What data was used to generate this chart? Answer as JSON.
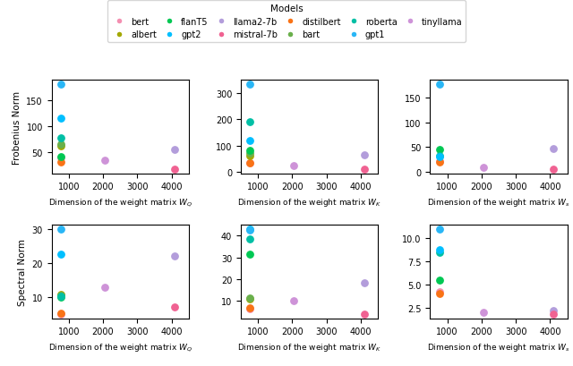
{
  "title": "Models",
  "colors": {
    "bert": "#f48fb1",
    "distilbert": "#f97316",
    "albert": "#a3a800",
    "bart": "#6ab04c",
    "flanT5": "#00c853",
    "roberta": "#00bfa5",
    "gpt2": "#00bfff",
    "gpt1": "#29b6f6",
    "llama2-7b": "#b39ddb",
    "tinyllama": "#ce93d8",
    "mistral-7b": "#f06292"
  },
  "xlabels": [
    "Dimension of the weight matrix $W_Q$",
    "Dimension of the weight matrix $W_K$",
    "Dimension of the weight matrix $W_s$"
  ],
  "ylabels_row0": "Frobenius Norm",
  "ylabels_row1": "Spectral Norm",
  "legend_order": [
    [
      "bert",
      "#f48fb1"
    ],
    [
      "albert",
      "#a3a800"
    ],
    [
      "flanT5",
      "#00c853"
    ],
    [
      "gpt2",
      "#00bfff"
    ],
    [
      "llama2-7b",
      "#b39ddb"
    ],
    [
      "mistral-7b",
      "#f06292"
    ],
    [
      "distilbert",
      "#f97316"
    ],
    [
      "bart",
      "#6ab04c"
    ],
    [
      "roberta",
      "#00bfa5"
    ],
    [
      "gpt1",
      "#29b6f6"
    ],
    [
      "tinyllama",
      "#ce93d8"
    ]
  ],
  "data": {
    "frobenius": {
      "WQ": {
        "bert": [
          768,
          40
        ],
        "distilbert": [
          768,
          32
        ],
        "albert": [
          768,
          62
        ],
        "bart": [
          768,
          65
        ],
        "flanT5": [
          768,
          42
        ],
        "roberta": [
          768,
          78
        ],
        "gpt2": [
          768,
          115
        ],
        "gpt1": [
          768,
          180
        ],
        "llama2-7b": [
          4096,
          56
        ],
        "tinyllama": [
          2048,
          35
        ],
        "mistral-7b": [
          4096,
          18
        ]
      },
      "WK": {
        "bert": [
          768,
          35
        ],
        "distilbert": [
          768,
          33
        ],
        "albert": [
          768,
          62
        ],
        "bart": [
          768,
          70
        ],
        "flanT5": [
          768,
          80
        ],
        "roberta": [
          768,
          190
        ],
        "gpt2": [
          768,
          120
        ],
        "gpt1": [
          768,
          335
        ],
        "llama2-7b": [
          4096,
          65
        ],
        "tinyllama": [
          2048,
          25
        ],
        "mistral-7b": [
          4096,
          10
        ]
      },
      "WS": {
        "bert": [
          768,
          22
        ],
        "distilbert": [
          768,
          20
        ],
        "flanT5": [
          768,
          45
        ],
        "roberta": [
          768,
          32
        ],
        "gpt2": [
          768,
          30
        ],
        "gpt1": [
          768,
          178
        ],
        "llama2-7b": [
          4096,
          46
        ],
        "tinyllama": [
          2048,
          9
        ],
        "mistral-7b": [
          4096,
          5
        ]
      }
    },
    "spectral": {
      "WQ": {
        "bert": [
          768,
          5.0
        ],
        "distilbert": [
          768,
          5.2
        ],
        "albert": [
          768,
          10.8
        ],
        "bart": [
          768,
          10.5
        ],
        "flanT5": [
          768,
          10.0
        ],
        "roberta": [
          768,
          10.2
        ],
        "gpt2": [
          768,
          22.5
        ],
        "gpt1": [
          768,
          30.0
        ],
        "llama2-7b": [
          4096,
          22.0
        ],
        "tinyllama": [
          2048,
          13.0
        ],
        "mistral-7b": [
          4096,
          7.0
        ]
      },
      "WK": {
        "bert": [
          768,
          6.5
        ],
        "distilbert": [
          768,
          6.8
        ],
        "albert": [
          768,
          11.0
        ],
        "bart": [
          768,
          11.2
        ],
        "flanT5": [
          768,
          31.5
        ],
        "roberta": [
          768,
          38.5
        ],
        "gpt2": [
          768,
          43.0
        ],
        "gpt1": [
          768,
          42.5
        ],
        "llama2-7b": [
          4096,
          18.5
        ],
        "tinyllama": [
          2048,
          10.0
        ],
        "mistral-7b": [
          4096,
          4.0
        ]
      },
      "WS": {
        "bert": [
          768,
          4.2
        ],
        "distilbert": [
          768,
          4.0
        ],
        "flanT5": [
          768,
          5.5
        ],
        "roberta": [
          768,
          8.5
        ],
        "gpt2": [
          768,
          8.8
        ],
        "gpt1": [
          768,
          11.0
        ],
        "llama2-7b": [
          4096,
          2.2
        ],
        "tinyllama": [
          2048,
          2.0
        ],
        "mistral-7b": [
          4096,
          1.8
        ]
      }
    }
  }
}
